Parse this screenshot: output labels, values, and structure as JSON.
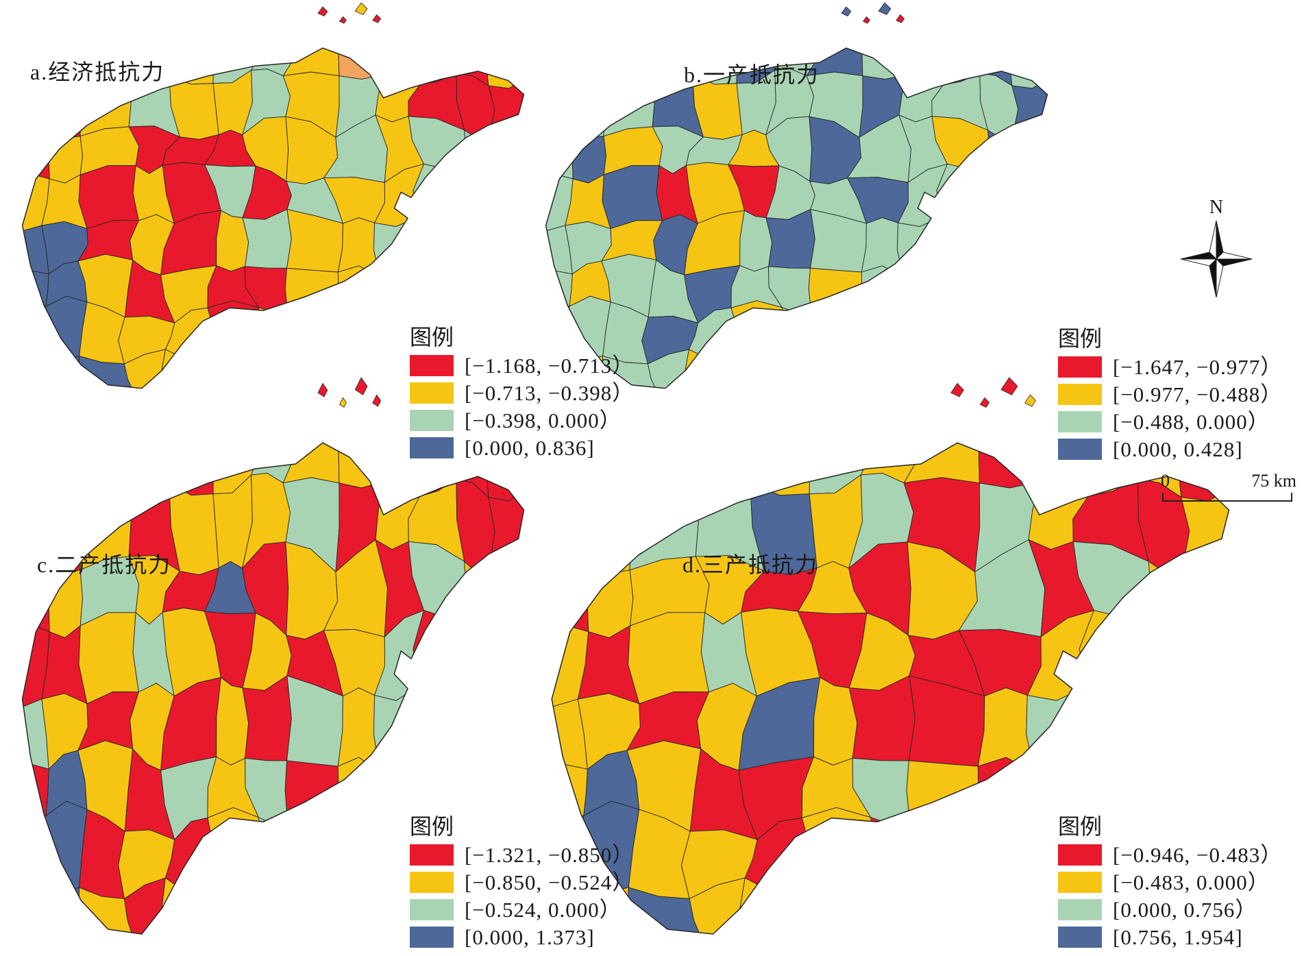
{
  "figure": {
    "class_colors": [
      "#E8192C",
      "#F6C514",
      "#A8D4B4",
      "#4D6899",
      "#F2A45F"
    ],
    "border_color": "#262626",
    "north_label": "N",
    "scalebar": {
      "zero_label": "0",
      "distance_label": "75 km"
    },
    "panels": [
      {
        "id": "a",
        "title": "a.经济抵抗力",
        "legend_title": "图例",
        "legend": [
          "[−1.168, −0.713）",
          "[−0.713, −0.398）",
          "[−0.398, 0.000）",
          "[0.000, 0.836]"
        ],
        "class_grid": [
          "1112122141001",
          "1012112121000",
          "0110001121222",
          "1101020211211",
          "3301012112101",
          "3310100112031",
          "3311101011211",
          "1331110101111"
        ],
        "island_colors": [
          "#E8192C",
          "#E8192C",
          "#F6C514",
          "#E8192C"
        ]
      },
      {
        "id": "b",
        "title": "b.一产抵抗力",
        "legend_title": "图例",
        "legend": [
          "[−1.647, −0.977）",
          "[−0.977, −0.488）",
          "[−0.488, 0.000）",
          "[0.000, 0.428]"
        ],
        "class_grid": [
          "2122232321332",
          "1223122232223",
          "2312212322132",
          "2130102232222",
          "2213123222122",
          "2122322122212",
          "1223212321222",
          "1122123222122"
        ],
        "island_colors": [
          "#4D6899",
          "#E8192C",
          "#4D6899",
          "#E8192C"
        ]
      },
      {
        "id": "c",
        "title": "c.二产抵抗力",
        "legend_title": "图例",
        "legend": [
          "[−1.321, −0.850）",
          "[−0.850, −0.524）",
          "[−0.524, 0.000）",
          "[0.000, 1.373]"
        ],
        "class_grid": [
          "0102012110000",
          "1010111201100",
          "0121030110212",
          "0012101012013",
          "2101010212120",
          "0310212010210",
          "3301012101021",
          "3310101210110"
        ],
        "island_colors": [
          "#E8192C",
          "#F6C514",
          "#E8192C",
          "#E8192C"
        ]
      },
      {
        "id": "d",
        "title": "d.三产抵抗力",
        "legend_title": "图例",
        "legend": [
          "[−0.946, −0.483）",
          "[−0.483, 0.000）",
          "[0.000, 0.756）",
          "[0.756, 1.954]"
        ],
        "class_grid": [
          "1211121100110",
          "1122312021001",
          "0111010120211",
          "1012101001121",
          "1101310012012",
          "1310012100121",
          "3311010012101",
          "3131101101011"
        ],
        "island_colors": [
          "#E8192C",
          "#E8192C",
          "#E8192C",
          "#F6C514"
        ]
      }
    ]
  }
}
